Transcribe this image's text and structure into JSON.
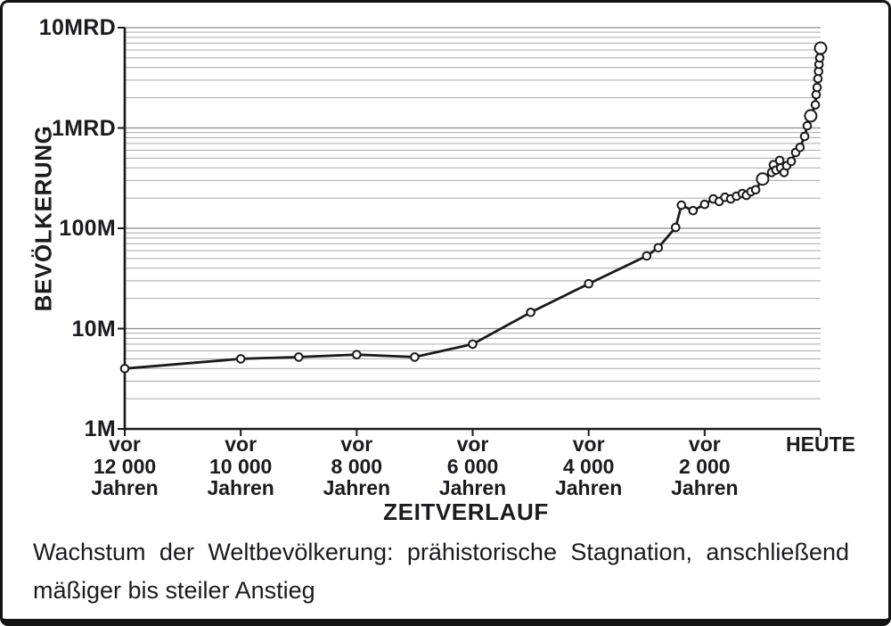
{
  "caption": {
    "line1": "Wachstum der Weltbevölkerung: prähistorische Stagnation, anschließend",
    "line2": "mäßiger bis steiler Anstieg"
  },
  "colors": {
    "axis": "#1a1a1a",
    "curve": "#1a1a1a",
    "grid_major": "#8a8a90",
    "grid_minor": "#a8a8ad",
    "marker_fill": "#ffffff",
    "marker_stroke": "#1a1a1a",
    "text": "#1b1b20",
    "frame": "#141414",
    "background": "#ffffff"
  },
  "chart_data": {
    "type": "line",
    "title": "Wachstum der Weltbevölkerung",
    "ylabel": "BEVÖLKERUNG",
    "xlabel": "ZEITVERLAUF",
    "y_scale": "log",
    "y_unit": "Millionen Menschen",
    "x_unit": "Jahre vor heute",
    "xlim_years_before_present": [
      12000,
      0
    ],
    "ylim_millions": [
      1,
      10000
    ],
    "grid": "horizontal log minor gridlines on",
    "legend": "none",
    "y_ticks": [
      {
        "label": "10MRD",
        "millions": 10000
      },
      {
        "label": "1MRD",
        "millions": 1000
      },
      {
        "label": "100M",
        "millions": 100
      },
      {
        "label": "10M",
        "millions": 10
      },
      {
        "label": "1M",
        "millions": 1
      }
    ],
    "x_ticks": [
      {
        "years": 12000,
        "lines": [
          "vor",
          "12 000",
          "Jahren"
        ]
      },
      {
        "years": 10000,
        "lines": [
          "vor",
          "10 000",
          "Jahren"
        ]
      },
      {
        "years": 8000,
        "lines": [
          "vor",
          "8 000",
          "Jahren"
        ]
      },
      {
        "years": 6000,
        "lines": [
          "vor",
          "6 000",
          "Jahren"
        ]
      },
      {
        "years": 4000,
        "lines": [
          "vor",
          "4 000",
          "Jahren"
        ]
      },
      {
        "years": 2000,
        "lines": [
          "vor",
          "2 000",
          "Jahren"
        ]
      },
      {
        "years": 0,
        "lines": [
          "HEUTE"
        ]
      }
    ],
    "points_years_before_vs_millions": [
      [
        12000,
        4
      ],
      [
        10000,
        5
      ],
      [
        9000,
        5.2
      ],
      [
        8000,
        5.5
      ],
      [
        7000,
        5.2
      ],
      [
        6000,
        7
      ],
      [
        5000,
        14.5
      ],
      [
        4000,
        28
      ],
      [
        3000,
        53
      ],
      [
        2800,
        64
      ],
      [
        2500,
        102
      ],
      [
        2400,
        170
      ],
      [
        2200,
        150
      ],
      [
        2000,
        173
      ],
      [
        1850,
        196
      ],
      [
        1750,
        185
      ],
      [
        1650,
        204
      ],
      [
        1550,
        196
      ],
      [
        1450,
        209
      ],
      [
        1350,
        222
      ],
      [
        1280,
        213
      ],
      [
        1200,
        232
      ],
      [
        1120,
        242
      ],
      [
        1000,
        310
      ],
      [
        845,
        360
      ],
      [
        815,
        430
      ],
      [
        770,
        380
      ],
      [
        705,
        475
      ],
      [
        690,
        400
      ],
      [
        630,
        360
      ],
      [
        585,
        420
      ],
      [
        505,
        465
      ],
      [
        430,
        570
      ],
      [
        355,
        640
      ],
      [
        275,
        825
      ],
      [
        230,
        1050
      ],
      [
        170,
        1320
      ],
      [
        90,
        1700
      ],
      [
        77,
        2150
      ],
      [
        60,
        2530
      ],
      [
        46,
        3100
      ],
      [
        35,
        3670
      ],
      [
        28,
        4300
      ],
      [
        15,
        5000
      ],
      [
        0,
        6250
      ]
    ],
    "large_marker_years": [
      1000,
      170,
      0
    ]
  }
}
